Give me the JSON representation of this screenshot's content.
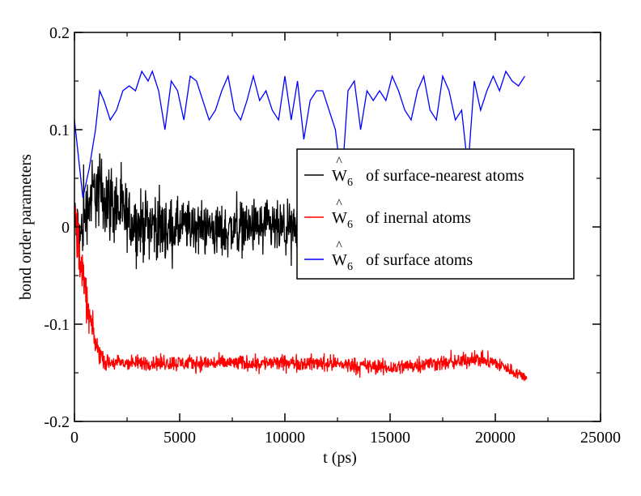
{
  "chart_data": {
    "type": "line",
    "xlabel": "t (ps)",
    "ylabel": "bond order parameters",
    "xlim": [
      0,
      25000
    ],
    "ylim": [
      -0.2,
      0.2
    ],
    "x_ticks": [
      "0",
      "5000",
      "10000",
      "15000",
      "20000",
      "25000"
    ],
    "y_ticks": [
      "-0.2",
      "-0.1",
      "0",
      "0.1",
      "0.2"
    ],
    "grid": false,
    "legend_position": "center-right",
    "series": [
      {
        "name": "Ŵ6 of surface-nearest atoms",
        "legend": {
          "symbol": "W",
          "hat": "^",
          "subscript": "6",
          "text": "of surface-nearest atoms"
        },
        "color": "#000000",
        "pattern": "noisy",
        "x": [
          0,
          300,
          600,
          1000,
          1500,
          2000,
          2500,
          3000,
          3500,
          4000,
          4500,
          5000,
          6000,
          7000,
          8000,
          9000,
          10000,
          11000,
          12000,
          13000,
          14000,
          15000,
          16000,
          17000,
          18000,
          19000,
          20000,
          21000
        ],
        "y": [
          0.0,
          -0.01,
          0.02,
          0.04,
          0.03,
          0.02,
          0.01,
          0.0,
          0.005,
          0.0,
          -0.005,
          0.0,
          0.0,
          -0.005,
          0.0,
          0.0,
          -0.005,
          0.0,
          -0.01,
          -0.005,
          0.0,
          0.0,
          0.0,
          0.0,
          0.0,
          0.0,
          0.0,
          0.0
        ],
        "amplitude": [
          0.05,
          0.05,
          0.05,
          0.06,
          0.06,
          0.06,
          0.05,
          0.05,
          0.05,
          0.05,
          0.05,
          0.04,
          0.04,
          0.04,
          0.04,
          0.04,
          0.04,
          0.04,
          0.03,
          0.03,
          0.03,
          0.03,
          0.03,
          0.03,
          0.03,
          0.03,
          0.03,
          0.03
        ]
      },
      {
        "name": "Ŵ6 of inernal atoms",
        "legend": {
          "symbol": "W",
          "hat": "^",
          "subscript": "6",
          "text": "of inernal atoms"
        },
        "color": "#ff0000",
        "pattern": "noisy",
        "x": [
          0,
          200,
          400,
          600,
          800,
          1000,
          1200,
          1500,
          2000,
          3000,
          5000,
          8000,
          10000,
          12000,
          15000,
          17000,
          18000,
          19000,
          20000,
          21500
        ],
        "y": [
          0.02,
          -0.02,
          -0.05,
          -0.08,
          -0.1,
          -0.12,
          -0.13,
          -0.14,
          -0.14,
          -0.14,
          -0.14,
          -0.14,
          -0.14,
          -0.14,
          -0.145,
          -0.14,
          -0.14,
          -0.135,
          -0.14,
          -0.155
        ],
        "amplitude": [
          0.04,
          0.04,
          0.04,
          0.03,
          0.025,
          0.02,
          0.015,
          0.012,
          0.012,
          0.012,
          0.012,
          0.012,
          0.012,
          0.012,
          0.012,
          0.012,
          0.012,
          0.012,
          0.012,
          0.008
        ]
      },
      {
        "name": "Ŵ6 of surface atoms",
        "legend": {
          "symbol": "W",
          "hat": "^",
          "subscript": "6",
          "text": "of surface atoms"
        },
        "color": "#0000ff",
        "pattern": "smooth",
        "x": [
          0,
          200,
          400,
          700,
          1000,
          1200,
          1400,
          1700,
          2000,
          2300,
          2600,
          2900,
          3200,
          3500,
          3700,
          4000,
          4300,
          4600,
          4900,
          5200,
          5500,
          5800,
          6100,
          6400,
          6700,
          7000,
          7300,
          7600,
          7900,
          8200,
          8500,
          8800,
          9100,
          9400,
          9700,
          10000,
          10300,
          10600,
          10900,
          11200,
          11500,
          11800,
          12100,
          12400,
          12700,
          13000,
          13300,
          13600,
          13900,
          14200,
          14500,
          14800,
          15100,
          15400,
          15700,
          16000,
          16300,
          16600,
          16900,
          17200,
          17500,
          17800,
          18100,
          18400,
          18700,
          19000,
          19300,
          19600,
          19900,
          20200,
          20500,
          20800,
          21100,
          21400
        ],
        "y": [
          0.11,
          0.07,
          0.03,
          0.06,
          0.1,
          0.14,
          0.13,
          0.11,
          0.12,
          0.14,
          0.145,
          0.14,
          0.16,
          0.15,
          0.16,
          0.14,
          0.1,
          0.15,
          0.14,
          0.11,
          0.155,
          0.15,
          0.13,
          0.11,
          0.12,
          0.14,
          0.155,
          0.12,
          0.11,
          0.13,
          0.155,
          0.13,
          0.14,
          0.12,
          0.11,
          0.155,
          0.11,
          0.15,
          0.09,
          0.13,
          0.14,
          0.14,
          0.12,
          0.1,
          0.045,
          0.14,
          0.15,
          0.1,
          0.14,
          0.13,
          0.14,
          0.13,
          0.155,
          0.14,
          0.12,
          0.11,
          0.14,
          0.155,
          0.12,
          0.11,
          0.155,
          0.14,
          0.11,
          0.12,
          0.06,
          0.15,
          0.12,
          0.14,
          0.155,
          0.14,
          0.16,
          0.15,
          0.145,
          0.155
        ]
      }
    ]
  }
}
